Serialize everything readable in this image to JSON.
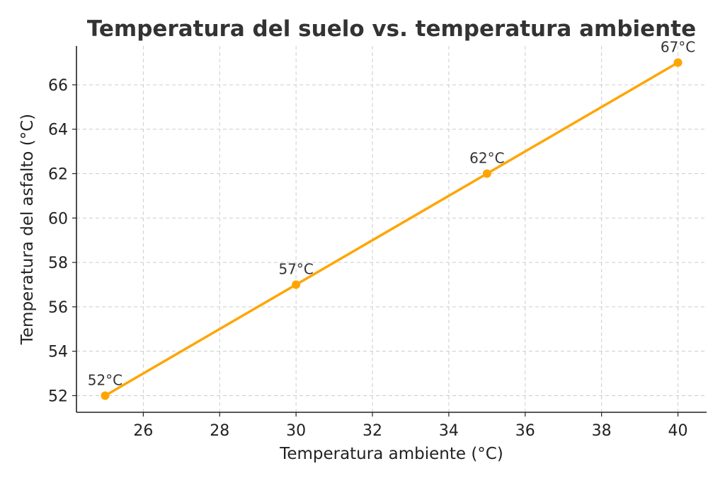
{
  "chart_data": {
    "type": "line",
    "title": "Temperatura del suelo vs. temperatura ambiente",
    "xlabel": "Temperatura ambiente (°C)",
    "ylabel": "Temperatura del asfalto (°C)",
    "x": [
      25,
      30,
      35,
      40
    ],
    "series": [
      {
        "values": [
          52,
          57,
          62,
          67
        ],
        "data_labels": [
          "52°C",
          "57°C",
          "62°C",
          "67°C"
        ]
      }
    ],
    "xticks": [
      26,
      28,
      30,
      32,
      34,
      36,
      38,
      40
    ],
    "yticks": [
      52,
      54,
      56,
      58,
      60,
      62,
      64,
      66
    ],
    "xlim": [
      24.25,
      40.75
    ],
    "ylim": [
      51.25,
      67.75
    ],
    "grid": true,
    "colors": {
      "line": "#FFA500",
      "grid": "#cccccc",
      "text": "#333333"
    }
  }
}
